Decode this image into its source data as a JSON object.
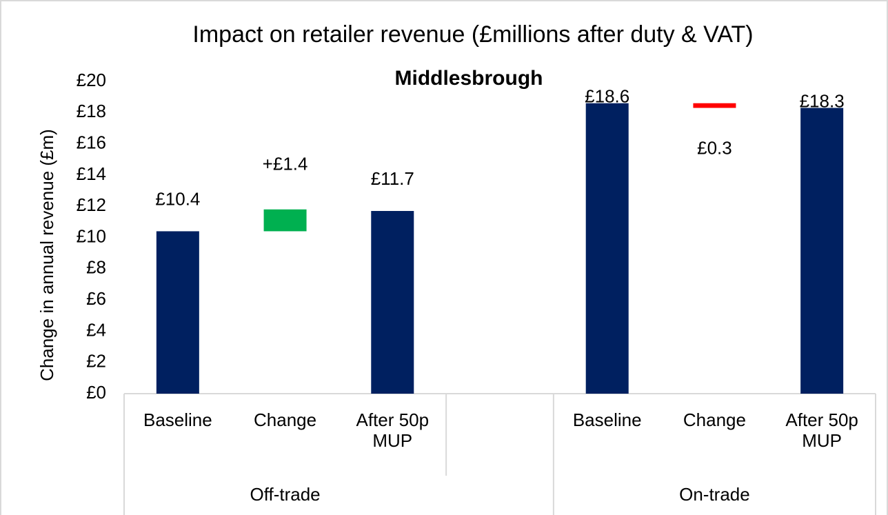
{
  "chart_data": {
    "type": "waterfall",
    "title": "Impact on retailer revenue (£millions after duty & VAT)",
    "subtitle": "Middlesbrough",
    "y_label": "Change in annual  revenue (£m)",
    "categories": [
      "Baseline",
      "Change",
      "After 50p MUP",
      null,
      "Baseline",
      "Change",
      "After 50p MUP"
    ],
    "groups": [
      {
        "name": "Off-trade",
        "span": [
          0,
          2
        ]
      },
      {
        "name": "On-trade",
        "span": [
          4,
          6
        ]
      }
    ],
    "measure": [
      "absolute",
      "relative",
      "absolute",
      null,
      "absolute",
      "relative",
      "absolute"
    ],
    "values": [
      10.4,
      1.4,
      11.7,
      null,
      18.6,
      -0.3,
      18.3
    ],
    "value_labels": [
      "£10.4",
      "+£1.4",
      "£11.7",
      null,
      "£18.6",
      "£0.3",
      "£18.3"
    ],
    "color": "#002060",
    "increase_color": "#00b050",
    "decrease_color": "#ff0000",
    "ylim": [
      0,
      20
    ],
    "yticks": [
      {
        "value": 0,
        "label": "£0"
      },
      {
        "value": 2,
        "label": "£2"
      },
      {
        "value": 4,
        "label": "£4"
      },
      {
        "value": 6,
        "label": "£6"
      },
      {
        "value": 8,
        "label": "£8"
      },
      {
        "value": 10,
        "label": "£10"
      },
      {
        "value": 12,
        "label": "£12"
      },
      {
        "value": 14,
        "label": "£14"
      },
      {
        "value": 16,
        "label": "£16"
      },
      {
        "value": 18,
        "label": "£18"
      },
      {
        "value": 20,
        "label": "£20"
      }
    ],
    "grid": false
  }
}
